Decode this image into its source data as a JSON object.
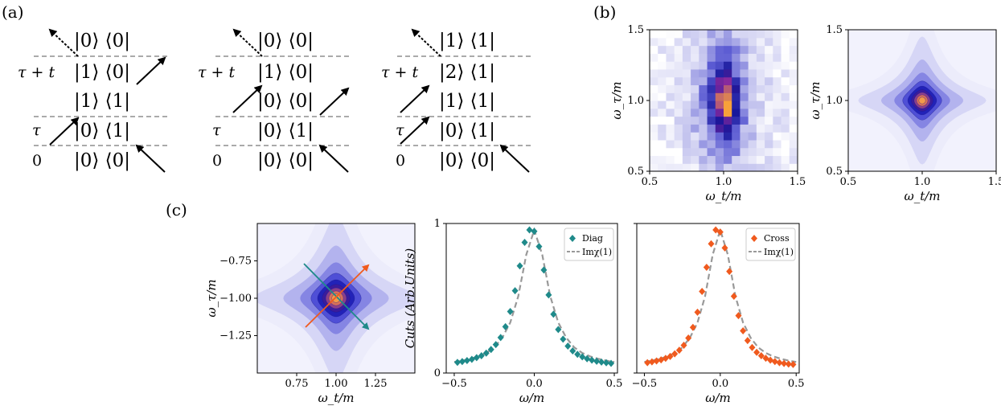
{
  "panel_labels": {
    "a": "(a)",
    "b": "(b)",
    "c": "(c)"
  },
  "diagrams": [
    {
      "time_labels": {
        "top": "τ + t",
        "mid": "τ",
        "bottom": "0"
      },
      "levels": [
        "|0⟩ ⟨0|",
        "|1⟩ ⟨0|",
        "|1⟩ ⟨1|",
        "|0⟩ ⟨1|",
        "|0⟩ ⟨0|"
      ]
    },
    {
      "time_labels": {
        "top": "τ + t",
        "mid": "τ",
        "bottom": "0"
      },
      "levels": [
        "|0⟩ ⟨0|",
        "|1⟩ ⟨0|",
        "|0⟩ ⟨0|",
        "|0⟩ ⟨1|",
        "|0⟩ ⟨0|"
      ]
    },
    {
      "time_labels": {
        "top": "τ + t",
        "mid": "τ",
        "bottom": "0"
      },
      "levels": [
        "|1⟩ ⟨1|",
        "|2⟩ ⟨1|",
        "|1⟩ ⟨1|",
        "|0⟩ ⟨1|",
        "|0⟩ ⟨0|"
      ]
    }
  ],
  "colors": {
    "diag": "#1f8a8a",
    "cross": "#f05a1e",
    "fit": "#999999",
    "contour_dark": "#1a1aa0",
    "contour_peak": "#f7a13a"
  },
  "chart_data": [
    {
      "type": "heatmap",
      "id": "b-left",
      "xlabel": "ω_t/m",
      "ylabel": "ω_τ/m",
      "xlim": [
        0.5,
        1.5
      ],
      "ylim": [
        0.5,
        1.5
      ],
      "xticks": [
        "0.5",
        "1.0",
        "1.5"
      ],
      "yticks": [
        "0.5",
        "1.0",
        "1.5"
      ],
      "peak": [
        1.0,
        1.0
      ]
    },
    {
      "type": "heatmap",
      "id": "b-right",
      "xlabel": "ω_t/m",
      "ylabel": "ω_τ/m",
      "xlim": [
        0.5,
        1.5
      ],
      "ylim": [
        0.5,
        1.5
      ],
      "xticks": [
        "0.5",
        "1.0",
        "1.5"
      ],
      "yticks": [
        "0.5",
        "1.0",
        "1.5"
      ],
      "peak": [
        1.0,
        1.0
      ]
    },
    {
      "type": "heatmap",
      "id": "c-left",
      "xlabel": "ω_t/m",
      "ylabel": "ω_τ/m",
      "xlim": [
        0.5,
        1.5
      ],
      "ylim": [
        -1.5,
        -0.5
      ],
      "xticks": [
        "0.75",
        "1.00",
        "1.25"
      ],
      "yticks": [
        "−0.75",
        "−1.00",
        "−1.25"
      ],
      "peak": [
        1.0,
        -1.0
      ],
      "annotations": [
        "diagonal cut (teal)",
        "cross-diagonal cut (orange)"
      ]
    },
    {
      "type": "scatter",
      "id": "c-mid",
      "xlabel": "ω/m",
      "ylabel": "Cuts (Arb.Units)",
      "xlim": [
        -0.55,
        0.52
      ],
      "ylim": [
        0,
        1
      ],
      "xticks": [
        "−0.5",
        "0.0",
        "0.5"
      ],
      "yticks": [
        "0",
        "1"
      ],
      "legend": "top-right",
      "series": [
        {
          "name": "Diag",
          "marker": "diamond",
          "x": [
            -0.48,
            -0.45,
            -0.42,
            -0.39,
            -0.36,
            -0.33,
            -0.3,
            -0.27,
            -0.24,
            -0.21,
            -0.18,
            -0.15,
            -0.12,
            -0.09,
            -0.06,
            -0.03,
            0.0,
            0.03,
            0.06,
            0.09,
            0.12,
            0.15,
            0.18,
            0.21,
            0.24,
            0.27,
            0.3,
            0.33,
            0.36,
            0.39,
            0.42,
            0.45,
            0.48
          ],
          "y": [
            0.042,
            0.048,
            0.055,
            0.064,
            0.076,
            0.09,
            0.109,
            0.135,
            0.171,
            0.222,
            0.3,
            0.41,
            0.56,
            0.74,
            0.91,
            1.0,
            0.99,
            0.88,
            0.71,
            0.53,
            0.39,
            0.28,
            0.21,
            0.16,
            0.125,
            0.1,
            0.082,
            0.068,
            0.058,
            0.05,
            0.044,
            0.039,
            0.035
          ]
        },
        {
          "name": "Imχ(1)",
          "line": "dashed",
          "x": [
            -0.5,
            -0.45,
            -0.4,
            -0.35,
            -0.3,
            -0.25,
            -0.2,
            -0.15,
            -0.1,
            -0.05,
            0.0,
            0.05,
            0.1,
            0.15,
            0.2,
            0.25,
            0.3,
            0.35,
            0.4,
            0.45,
            0.5
          ],
          "y": [
            0.045,
            0.055,
            0.068,
            0.085,
            0.11,
            0.15,
            0.22,
            0.33,
            0.52,
            0.82,
            1.0,
            0.82,
            0.52,
            0.33,
            0.22,
            0.15,
            0.11,
            0.085,
            0.068,
            0.055,
            0.045
          ]
        }
      ]
    },
    {
      "type": "scatter",
      "id": "c-right",
      "xlabel": "ω/m",
      "ylabel": "",
      "xlim": [
        -0.55,
        0.52
      ],
      "ylim": [
        0,
        1
      ],
      "xticks": [
        "−0.5",
        "0.0",
        "0.5"
      ],
      "yticks": [
        "",
        ""
      ],
      "legend": "top-right",
      "series": [
        {
          "name": "Cross",
          "marker": "diamond",
          "x": [
            -0.48,
            -0.45,
            -0.42,
            -0.39,
            -0.36,
            -0.33,
            -0.3,
            -0.27,
            -0.24,
            -0.21,
            -0.18,
            -0.15,
            -0.12,
            -0.09,
            -0.06,
            -0.03,
            0.0,
            0.03,
            0.06,
            0.09,
            0.12,
            0.15,
            0.18,
            0.21,
            0.24,
            0.27,
            0.3,
            0.33,
            0.36,
            0.39,
            0.42,
            0.45,
            0.48
          ],
          "y": [
            0.04,
            0.046,
            0.052,
            0.06,
            0.071,
            0.085,
            0.104,
            0.13,
            0.166,
            0.218,
            0.295,
            0.405,
            0.555,
            0.73,
            0.9,
            1.0,
            0.985,
            0.87,
            0.7,
            0.52,
            0.38,
            0.27,
            0.2,
            0.15,
            0.115,
            0.09,
            0.072,
            0.058,
            0.048,
            0.04,
            0.034,
            0.03,
            0.027
          ]
        },
        {
          "name": "Imχ(1)",
          "line": "dashed",
          "x": [
            -0.5,
            -0.45,
            -0.4,
            -0.35,
            -0.3,
            -0.25,
            -0.2,
            -0.15,
            -0.1,
            -0.05,
            0.0,
            0.05,
            0.1,
            0.15,
            0.2,
            0.25,
            0.3,
            0.35,
            0.4,
            0.45,
            0.5
          ],
          "y": [
            0.045,
            0.055,
            0.068,
            0.085,
            0.11,
            0.15,
            0.22,
            0.33,
            0.52,
            0.82,
            1.0,
            0.82,
            0.52,
            0.33,
            0.22,
            0.15,
            0.11,
            0.085,
            0.068,
            0.055,
            0.045
          ]
        }
      ]
    }
  ]
}
